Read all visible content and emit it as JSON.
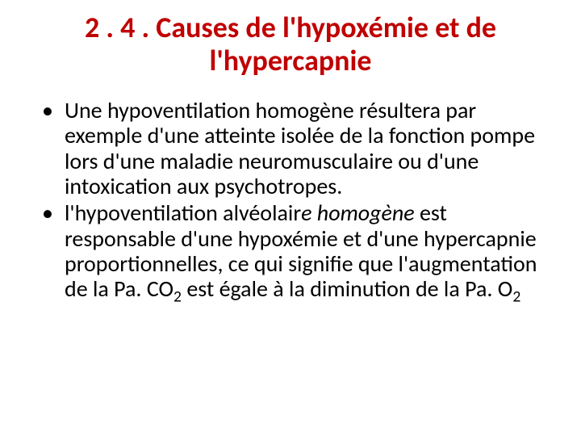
{
  "title": {
    "text": "2 . 4 .  Causes de l'hypoxémie et de l'hypercapnie",
    "color": "#c00000",
    "fontsize": 36
  },
  "body": {
    "color": "#000000",
    "fontsize": 28,
    "bullet_color": "#000000",
    "items": [
      {
        "pre": "Une hypoventilation homogène résultera par exemple d'une atteinte isolée de la fonction pompe lors d'une maladie neuromusculaire ou d'une intoxication aux psychotropes.",
        "italic": "",
        "post": ""
      },
      {
        "pre": "l'hypoventilation alvéolair",
        "italic": "e homogène ",
        "post": "est responsable d'une hypoxémie et d'une hypercapnie proportionnelles, ce qui signifie que l'augmentation de la Pa. CO",
        "sub1": "2",
        "post2": " est égale à la diminution de la Pa. O",
        "sub2": "2"
      }
    ]
  },
  "background_color": "#ffffff"
}
